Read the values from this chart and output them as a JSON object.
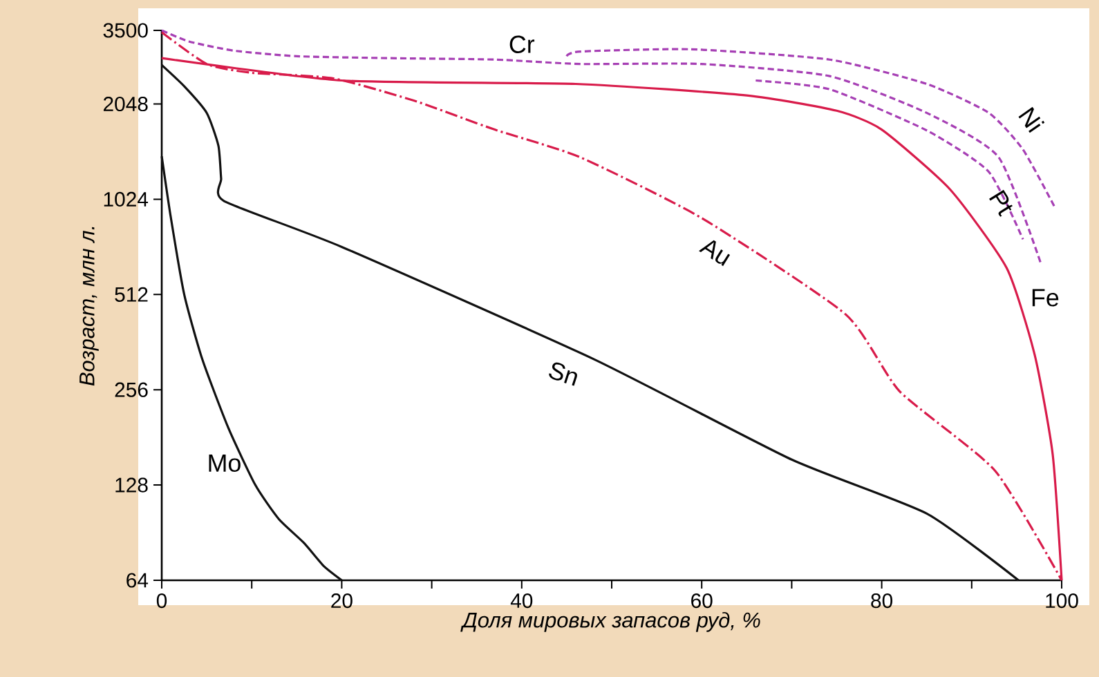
{
  "chart_data": {
    "type": "line",
    "xlabel": "Доля мировых запасов руд, %",
    "ylabel": "*Возраст,* млн л.",
    "log": "y",
    "xlim": [
      0,
      100
    ],
    "ylim": [
      64,
      3500
    ],
    "xticks": [
      0,
      {
        "value": 10,
        "label": null
      },
      20,
      {
        "value": 30,
        "label": null
      },
      40,
      {
        "value": 50,
        "label": null
      },
      60,
      {
        "value": 70,
        "label": null
      },
      80,
      {
        "value": 90,
        "label": null
      },
      100
    ],
    "yticks": [
      64,
      128,
      256,
      512,
      1024,
      2048,
      3500
    ],
    "grid": false,
    "legend": false,
    "marker": "none",
    "series": [
      {
        "name": "Cr",
        "color": "#a63fb4",
        "line_style": "dashed",
        "x": [
          0,
          3,
          8,
          15,
          25,
          37,
          46.5,
          60,
          74.2,
          85,
          93,
          97.7
        ],
        "values": [
          3500,
          3230,
          3020,
          2900,
          2860,
          2830,
          2740,
          2740,
          2510,
          1920,
          1390,
          640
        ]
      },
      {
        "name": "Ni",
        "color": "#a63fb4",
        "line_style": "dashed",
        "x": [
          45,
          46.5,
          58.8,
          74.2,
          85,
          91.9,
          95.7,
          99.2
        ],
        "values": [
          2900,
          3000,
          3050,
          2830,
          2370,
          1920,
          1470,
          970
        ]
      },
      {
        "name": "Pt",
        "color": "#a63fb4",
        "line_style": "dashed",
        "x": [
          66,
          74.2,
          85,
          91.9,
          95.7
        ],
        "values": [
          2430,
          2280,
          1690,
          1250,
          765
        ]
      },
      {
        "name": "Fe",
        "color": "#d81b4a",
        "line_style": "solid",
        "x": [
          0,
          20,
          46,
          65,
          75,
          80,
          87.6,
          93.9,
          97,
          99,
          100
        ],
        "values": [
          2860,
          2430,
          2370,
          2180,
          1950,
          1700,
          1100,
          620,
          330,
          160,
          64
        ]
      },
      {
        "name": "Au",
        "color": "#d81b4a",
        "line_style": "dashdot",
        "x": [
          0,
          5,
          10,
          19,
          28,
          37,
          46.5,
          60,
          76,
          82,
          92.6,
          100
        ],
        "values": [
          3450,
          2740,
          2570,
          2470,
          2100,
          1700,
          1390,
          893,
          443,
          253,
          142,
          64
        ]
      },
      {
        "name": "Sn",
        "color": "#111111",
        "line_style": "solid",
        "x": [
          0,
          2.5,
          5,
          6.3,
          6.6,
          6.9,
          20,
          48,
          70,
          85,
          95.2
        ],
        "values": [
          2720,
          2330,
          1920,
          1510,
          1190,
          1012,
          724,
          320,
          154,
          104,
          64
        ]
      },
      {
        "name": "Mo",
        "color": "#111111",
        "line_style": "solid",
        "x": [
          0,
          1,
          2.5,
          4.5,
          7.4,
          10.4,
          13,
          15.8,
          18,
          20
        ],
        "values": [
          1400,
          900,
          512,
          320,
          194,
          128,
          100,
          84,
          71,
          64
        ]
      }
    ]
  }
}
